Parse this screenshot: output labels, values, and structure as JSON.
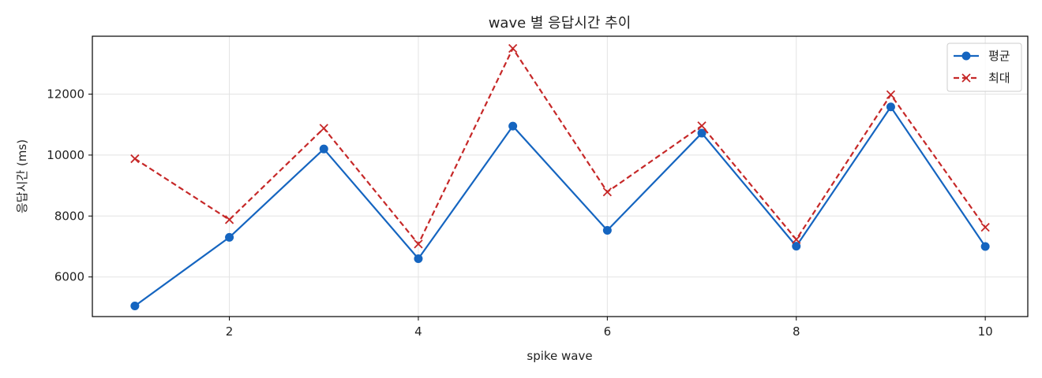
{
  "chart_data": {
    "type": "line",
    "title": "wave 별 응답시간 추이",
    "xlabel": "spike wave",
    "ylabel": "응답시간 (ms)",
    "x": [
      1,
      2,
      3,
      4,
      5,
      6,
      7,
      8,
      9,
      10
    ],
    "xlim": [
      0.55,
      10.45
    ],
    "ylim": [
      4700,
      13900
    ],
    "xticks": [
      2,
      4,
      6,
      8,
      10
    ],
    "yticks": [
      6000,
      8000,
      10000,
      12000
    ],
    "grid": true,
    "legend_position": "top-right",
    "series": [
      {
        "name": "평균",
        "values": [
          5050,
          7300,
          10200,
          6600,
          10950,
          7530,
          10720,
          7010,
          11580,
          7000
        ],
        "color": "#1565c0",
        "line_style": "solid",
        "marker": "circle"
      },
      {
        "name": "최대",
        "values": [
          9880,
          7880,
          10880,
          7080,
          13500,
          8790,
          10960,
          7230,
          11980,
          7630
        ],
        "color": "#c62828",
        "line_style": "dashed",
        "marker": "x"
      }
    ]
  }
}
